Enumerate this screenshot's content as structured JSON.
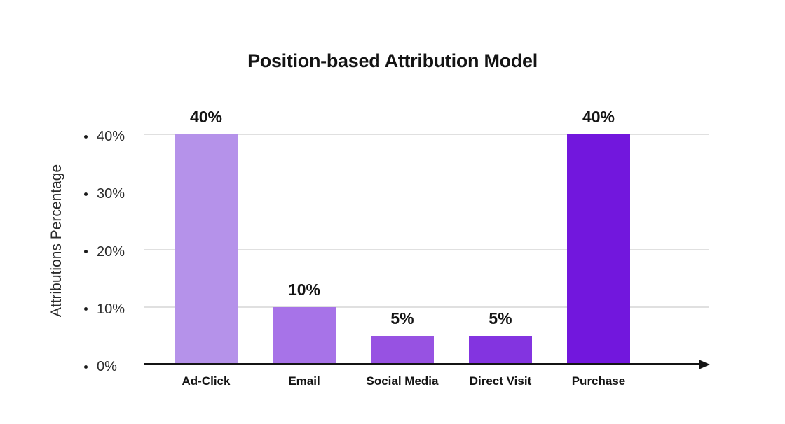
{
  "chart_data": {
    "type": "bar",
    "title": "Position-based Attribution Model",
    "ylabel": "Attributions Percentage",
    "xlabel": "",
    "categories": [
      "Ad-Click",
      "Email",
      "Social Media",
      "Direct Visit",
      "Purchase"
    ],
    "values": [
      40,
      10,
      5,
      5,
      40
    ],
    "data_labels": [
      "40%",
      "10%",
      "5%",
      "5%",
      "40%"
    ],
    "bar_colors": [
      "#b592ea",
      "#a773e8",
      "#9752e2",
      "#8334e0",
      "#7217dd"
    ],
    "ylim": [
      0,
      40
    ],
    "yticks": [
      0,
      10,
      20,
      30,
      40
    ],
    "ytick_labels": [
      "0%",
      "10%",
      "20%",
      "30%",
      "40%"
    ],
    "grid": "horizontal-gridlines-at-yticks",
    "legend": "none",
    "axis_style": "black x-axis with right arrowhead, dot bullets before y tick labels"
  },
  "colors": {
    "background": "#ffffff",
    "gridline": "#e0e0e0",
    "axis": "#141414",
    "title_text": "#141414",
    "tick_text": "#2b2b2b"
  }
}
